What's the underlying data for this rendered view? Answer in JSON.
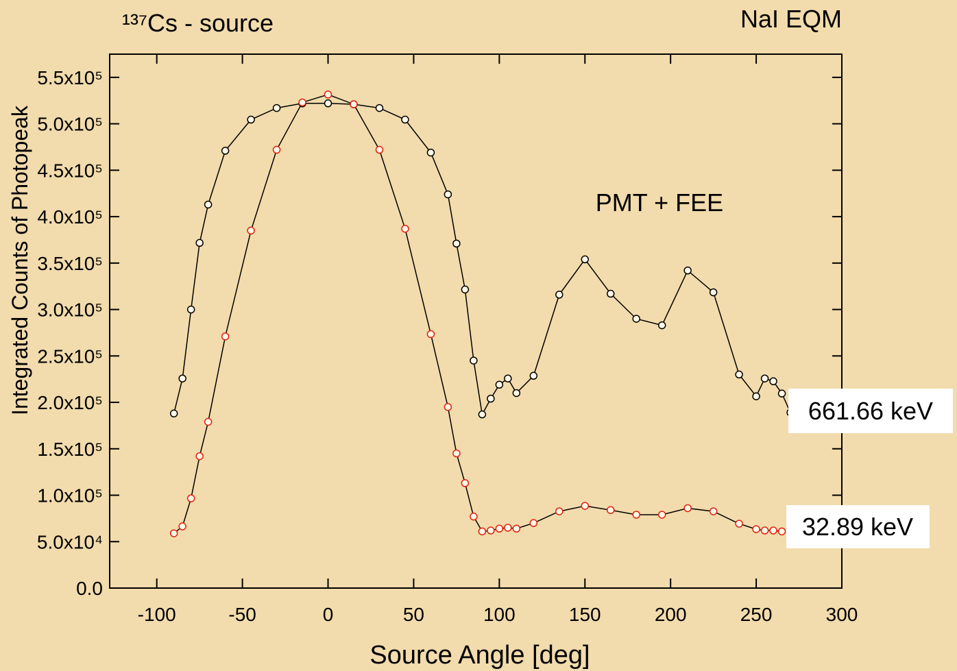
{
  "chart_data": {
    "type": "line",
    "title": "¹³⁷Cs - source",
    "annotations": [
      "NaI EQM",
      "PMT + FEE"
    ],
    "x_label": "Source Angle [deg]",
    "y_label": "Integrated Counts of Photopeak",
    "xlim": [
      -127.5,
      300
    ],
    "xticks": [
      -100,
      -50,
      0,
      50,
      100,
      150,
      200,
      250,
      300
    ],
    "ylim": [
      0,
      575000
    ],
    "yticks": [
      {
        "value": 0,
        "label": "0.0"
      },
      {
        "value": 50000,
        "label": "5.0x10⁴"
      },
      {
        "value": 100000,
        "label": "1.0x10⁵"
      },
      {
        "value": 150000,
        "label": "1.5x10⁵"
      },
      {
        "value": 200000,
        "label": "2.0x10⁵"
      },
      {
        "value": 250000,
        "label": "2.5x10⁵"
      },
      {
        "value": 300000,
        "label": "3.0x10⁵"
      },
      {
        "value": 350000,
        "label": "3.5x10⁵"
      },
      {
        "value": 400000,
        "label": "4.0x10⁵"
      },
      {
        "value": 450000,
        "label": "4.5x10⁵"
      },
      {
        "value": 500000,
        "label": "5.0x10⁵"
      },
      {
        "value": 550000,
        "label": "5.5x10⁵"
      }
    ],
    "series": [
      {
        "name": "661.66 keV",
        "color": "#000000",
        "x": [
          -90,
          -85,
          -80,
          -75,
          -70,
          -60,
          -45,
          -30,
          -15,
          0,
          15,
          30,
          45,
          60,
          70,
          75,
          80,
          85,
          90,
          95,
          100,
          105,
          110,
          120,
          135,
          150,
          165,
          180,
          195,
          210,
          225,
          240,
          250,
          255,
          260,
          265,
          270
        ],
        "values": [
          188000,
          225700,
          300000,
          371700,
          413000,
          471000,
          504500,
          517000,
          522000,
          522000,
          521000,
          517000,
          504500,
          469000,
          424000,
          371000,
          321500,
          245000,
          187000,
          204000,
          219000,
          225700,
          210000,
          228600,
          316000,
          354000,
          317000,
          290000,
          283000,
          342000,
          318500,
          230000,
          206500,
          225700,
          222700,
          209500,
          189000
        ]
      },
      {
        "name": "32.89 keV",
        "color": "#e02010",
        "x": [
          -90,
          -85,
          -80,
          -75,
          -70,
          -60,
          -45,
          -30,
          -15,
          0,
          15,
          30,
          45,
          60,
          70,
          75,
          80,
          85,
          90,
          95,
          100,
          105,
          110,
          120,
          135,
          150,
          165,
          180,
          195,
          210,
          225,
          240,
          250,
          255,
          260,
          265
        ],
        "values": [
          59000,
          66400,
          96600,
          142000,
          179000,
          271000,
          385000,
          472000,
          523000,
          531500,
          521000,
          472000,
          387000,
          273500,
          195000,
          145000,
          113000,
          77000,
          61000,
          62000,
          64000,
          65000,
          64000,
          70000,
          82600,
          88500,
          84000,
          79000,
          79000,
          86000,
          82600,
          69300,
          63400,
          62000,
          62000,
          61000
        ]
      }
    ]
  }
}
